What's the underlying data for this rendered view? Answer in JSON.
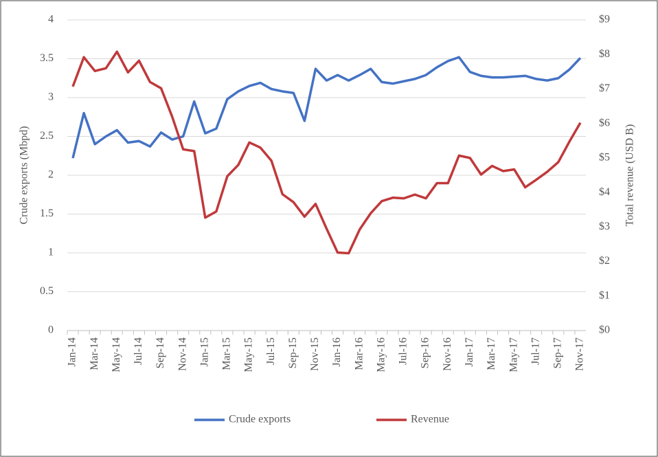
{
  "chart_data": {
    "type": "line",
    "categories": [
      "Jan-14",
      null,
      "Mar-14",
      null,
      "May-14",
      null,
      "Jul-14",
      null,
      "Sep-14",
      null,
      "Nov-14",
      null,
      "Jan-15",
      null,
      "Mar-15",
      null,
      "May-15",
      null,
      "Jul-15",
      null,
      "Sep-15",
      null,
      "Nov-15",
      null,
      "Jan-16",
      null,
      "Mar-16",
      null,
      "May-16",
      null,
      "Jul-16",
      null,
      "Sep-16",
      null,
      "Nov-16",
      null,
      "Jan-17",
      null,
      "Mar-17",
      null,
      "May-17",
      null,
      "Jul-17",
      null,
      "Sep-17",
      null,
      "Nov-17"
    ],
    "series": [
      {
        "name": "Crude exports",
        "color": "#4472c4",
        "values": [
          2.22,
          2.8,
          2.4,
          2.5,
          2.58,
          2.42,
          2.44,
          2.37,
          2.55,
          2.46,
          2.5,
          2.95,
          2.54,
          2.6,
          2.98,
          3.08,
          3.15,
          3.19,
          3.11,
          3.08,
          3.06,
          2.7,
          3.37,
          3.22,
          3.29,
          3.22,
          3.29,
          3.37,
          3.2,
          3.18,
          3.21,
          3.24,
          3.29,
          3.39,
          3.47,
          3.52,
          3.33,
          3.28,
          3.26,
          3.26,
          3.27,
          3.28,
          3.24,
          3.22,
          3.25,
          3.36,
          3.51
        ]
      },
      {
        "name": "Revenue",
        "color": "#c0393b",
        "axis": "y2",
        "values": [
          7.07,
          7.92,
          7.52,
          7.6,
          8.08,
          7.48,
          7.82,
          7.2,
          7.02,
          6.2,
          5.25,
          5.2,
          3.27,
          3.45,
          4.47,
          4.8,
          5.45,
          5.3,
          4.92,
          3.95,
          3.72,
          3.3,
          3.67,
          2.95,
          2.26,
          2.24,
          2.93,
          3.4,
          3.75,
          3.85,
          3.83,
          3.94,
          3.83,
          4.27,
          4.27,
          5.07,
          5.0,
          4.52,
          4.77,
          4.62,
          4.67,
          4.15,
          4.37,
          4.6,
          4.88,
          5.47,
          6.02
        ]
      }
    ],
    "ylabel": "Crude exports (Mbpd)",
    "y2label": "Total revenue (USD B)",
    "ylim": [
      0,
      4
    ],
    "yticks": [
      0,
      0.5,
      1,
      1.5,
      2,
      2.5,
      3,
      3.5,
      4
    ],
    "y2lim": [
      0,
      9
    ],
    "y2ticks": [
      {
        "value": 0,
        "label": "$0"
      },
      {
        "value": 1,
        "label": "$1"
      },
      {
        "value": 2,
        "label": "$2"
      },
      {
        "value": 3,
        "label": "$3"
      },
      {
        "value": 4,
        "label": "$4"
      },
      {
        "value": 5,
        "label": "$5"
      },
      {
        "value": 6,
        "label": "$6"
      },
      {
        "value": 7,
        "label": "$7"
      },
      {
        "value": 8,
        "label": "$8"
      },
      {
        "value": 9,
        "label": "$9"
      }
    ],
    "grid": true,
    "legend": "bottom"
  }
}
